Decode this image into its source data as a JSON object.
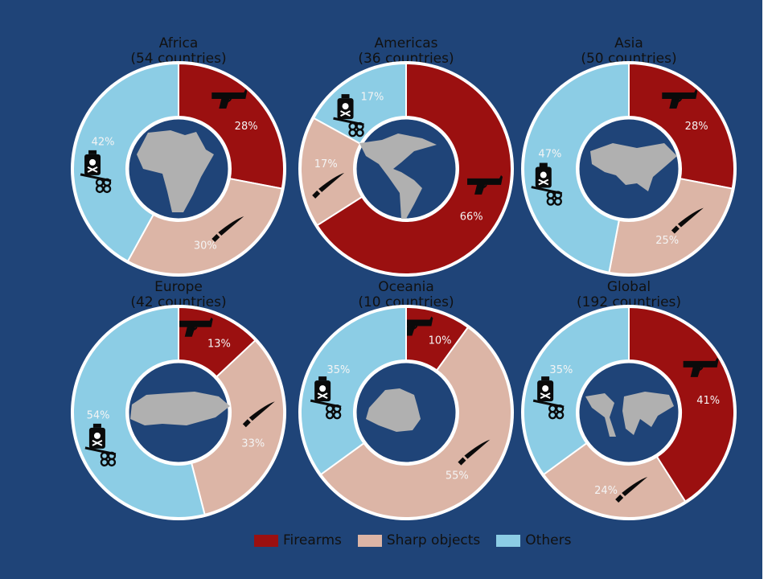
{
  "colors": {
    "background": "#1f4478",
    "firearms": "#9b1010",
    "sharp_objects": "#dcb5a6",
    "others": "#8ccde5",
    "map": "#b0b0b0",
    "ring_border": "#ffffff"
  },
  "icons": {
    "firearms": "handgun-icon",
    "sharp_objects": "knife-icon",
    "others": "poison-bottle-and-knuckles-icon"
  },
  "legend": [
    {
      "key": "firearms",
      "label": "Firearms"
    },
    {
      "key": "sharp_objects",
      "label": "Sharp objects"
    },
    {
      "key": "others",
      "label": "Others"
    }
  ],
  "chart_data": [
    {
      "type": "pie",
      "title": "Africa",
      "subtitle": "(54 countries)",
      "map": "africa-map",
      "categories": [
        "Firearms",
        "Sharp objects",
        "Others"
      ],
      "values": [
        28,
        30,
        42
      ],
      "labels": [
        "28%",
        "30%",
        "42%"
      ]
    },
    {
      "type": "pie",
      "title": "Americas",
      "subtitle": "(36 countries)",
      "map": "americas-map",
      "categories": [
        "Firearms",
        "Sharp objects",
        "Others"
      ],
      "values": [
        66,
        17,
        17
      ],
      "labels": [
        "66%",
        "17%",
        "17%"
      ]
    },
    {
      "type": "pie",
      "title": "Asia",
      "subtitle": "(50 countries)",
      "map": "asia-map",
      "categories": [
        "Firearms",
        "Sharp objects",
        "Others"
      ],
      "values": [
        28,
        25,
        47
      ],
      "labels": [
        "28%",
        "25%",
        "47%"
      ]
    },
    {
      "type": "pie",
      "title": "Europe",
      "subtitle": "(42 countries)",
      "map": "europe-map",
      "categories": [
        "Firearms",
        "Sharp objects",
        "Others"
      ],
      "values": [
        13,
        33,
        54
      ],
      "labels": [
        "13%",
        "33%",
        "54%"
      ]
    },
    {
      "type": "pie",
      "title": "Oceania",
      "subtitle": "(10 countries)",
      "map": "oceania-map",
      "categories": [
        "Firearms",
        "Sharp objects",
        "Others"
      ],
      "values": [
        10,
        55,
        35
      ],
      "labels": [
        "10%",
        "55%",
        "35%"
      ]
    },
    {
      "type": "pie",
      "title": "Global",
      "subtitle": "(192 countries)",
      "map": "world-map",
      "categories": [
        "Firearms",
        "Sharp objects",
        "Others"
      ],
      "values": [
        41,
        24,
        35
      ],
      "labels": [
        "41%",
        "24%",
        "35%"
      ]
    }
  ]
}
